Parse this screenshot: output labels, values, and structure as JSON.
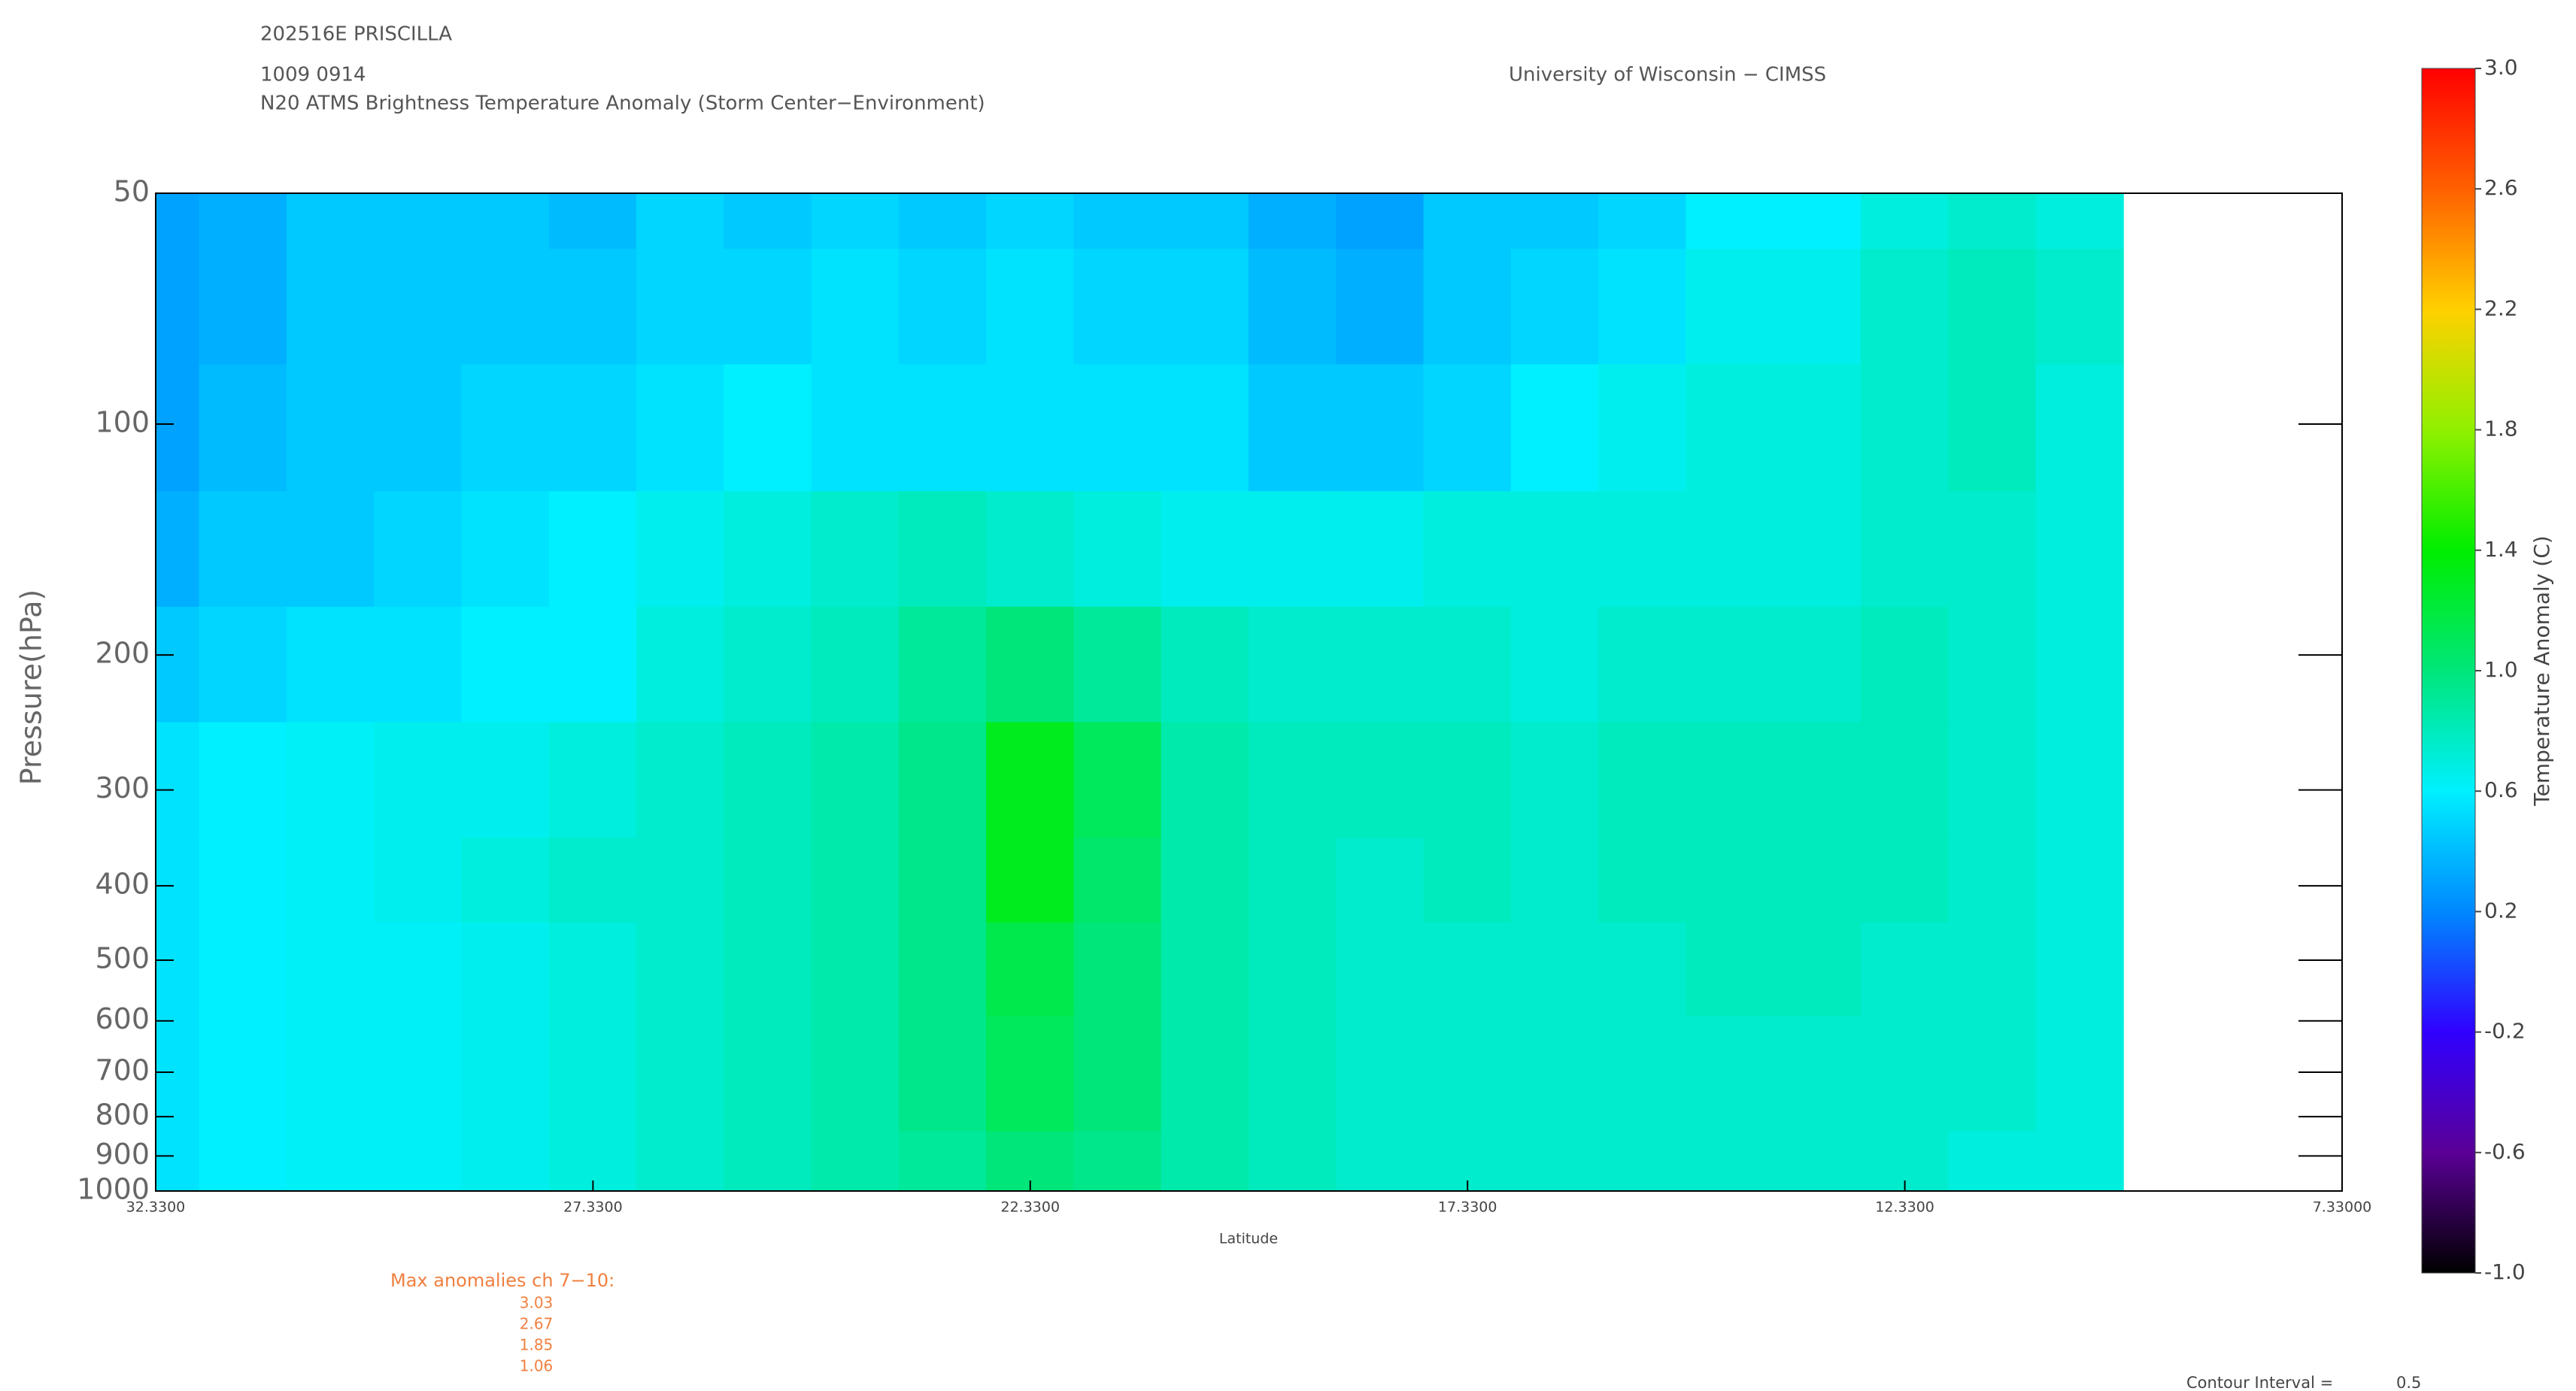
{
  "chart_data": {
    "type": "heatmap",
    "storm": "202516E PRISCILLA",
    "datetime": "1009 0914",
    "title": "N20 ATMS Brightness Temperature Anomaly (Storm Center−Environment)",
    "source": "University of Wisconsin − CIMSS",
    "ylabel": "Pressure(hPa)",
    "xlabel": "Latitude",
    "yscale": "log",
    "xlim": [
      32.33,
      7.33
    ],
    "xticks": [
      {
        "value": 32.33,
        "label": "32.3300"
      },
      {
        "value": 27.33,
        "label": "27.3300"
      },
      {
        "value": 22.33,
        "label": "22.3300"
      },
      {
        "value": 17.33,
        "label": "17.3300"
      },
      {
        "value": 12.33,
        "label": "12.3300"
      },
      {
        "value": 7.33,
        "label": "7.33000"
      }
    ],
    "ylim": [
      1000,
      50
    ],
    "yticks": [
      50,
      100,
      200,
      300,
      400,
      500,
      600,
      700,
      800,
      900,
      1000
    ],
    "x": [
      32.33,
      31.33,
      30.33,
      29.33,
      28.33,
      27.33,
      26.33,
      25.33,
      24.33,
      23.33,
      22.33,
      21.33,
      20.33,
      19.33,
      18.33,
      17.33,
      16.33,
      15.33,
      14.33,
      13.33,
      12.33,
      11.33,
      10.33
    ],
    "y": [
      50,
      70,
      100,
      150,
      200,
      300,
      400,
      500,
      700,
      1000
    ],
    "z": [
      [
        0.3,
        0.35,
        0.45,
        0.45,
        0.45,
        0.4,
        0.5,
        0.45,
        0.5,
        0.45,
        0.5,
        0.45,
        0.45,
        0.35,
        0.3,
        0.45,
        0.45,
        0.5,
        0.6,
        0.6,
        0.7,
        0.75,
        0.7
      ],
      [
        0.3,
        0.35,
        0.45,
        0.45,
        0.45,
        0.45,
        0.5,
        0.5,
        0.55,
        0.5,
        0.55,
        0.5,
        0.5,
        0.4,
        0.35,
        0.45,
        0.5,
        0.55,
        0.65,
        0.65,
        0.75,
        0.8,
        0.75
      ],
      [
        0.3,
        0.4,
        0.45,
        0.45,
        0.5,
        0.5,
        0.55,
        0.6,
        0.55,
        0.55,
        0.55,
        0.55,
        0.55,
        0.45,
        0.45,
        0.5,
        0.6,
        0.65,
        0.7,
        0.7,
        0.75,
        0.8,
        0.7
      ],
      [
        0.35,
        0.45,
        0.45,
        0.5,
        0.55,
        0.6,
        0.65,
        0.7,
        0.75,
        0.8,
        0.75,
        0.7,
        0.65,
        0.65,
        0.65,
        0.7,
        0.7,
        0.7,
        0.7,
        0.7,
        0.75,
        0.75,
        0.7
      ],
      [
        0.45,
        0.5,
        0.55,
        0.55,
        0.6,
        0.6,
        0.7,
        0.75,
        0.8,
        0.9,
        1.0,
        0.9,
        0.8,
        0.75,
        0.75,
        0.75,
        0.7,
        0.75,
        0.75,
        0.75,
        0.8,
        0.75,
        0.7
      ],
      [
        0.55,
        0.6,
        0.62,
        0.65,
        0.65,
        0.7,
        0.75,
        0.8,
        0.85,
        0.95,
        1.3,
        1.1,
        0.85,
        0.8,
        0.8,
        0.8,
        0.75,
        0.8,
        0.8,
        0.8,
        0.8,
        0.75,
        0.7
      ],
      [
        0.55,
        0.6,
        0.62,
        0.65,
        0.7,
        0.75,
        0.75,
        0.8,
        0.85,
        0.95,
        1.3,
        1.05,
        0.85,
        0.8,
        0.75,
        0.8,
        0.75,
        0.8,
        0.8,
        0.8,
        0.8,
        0.75,
        0.7
      ],
      [
        0.55,
        0.6,
        0.62,
        0.62,
        0.65,
        0.7,
        0.75,
        0.8,
        0.85,
        0.95,
        1.15,
        1.0,
        0.85,
        0.8,
        0.75,
        0.75,
        0.75,
        0.75,
        0.8,
        0.8,
        0.75,
        0.75,
        0.7
      ],
      [
        0.55,
        0.6,
        0.62,
        0.62,
        0.65,
        0.7,
        0.75,
        0.8,
        0.85,
        0.95,
        1.1,
        1.0,
        0.85,
        0.8,
        0.75,
        0.75,
        0.75,
        0.75,
        0.75,
        0.75,
        0.75,
        0.75,
        0.7
      ],
      [
        0.55,
        0.6,
        0.62,
        0.62,
        0.65,
        0.7,
        0.75,
        0.8,
        0.85,
        0.9,
        1.0,
        0.95,
        0.85,
        0.8,
        0.75,
        0.75,
        0.75,
        0.75,
        0.75,
        0.75,
        0.75,
        0.7,
        0.7
      ]
    ],
    "colorbar_label": "Temperature Anomaly (C)",
    "clim": [
      -1.0,
      3.0
    ],
    "cbticks": [
      {
        "value": -1.0,
        "label": "-1.0"
      },
      -0.6,
      -0.2,
      0.2,
      0.6,
      {
        "value": 1.0,
        "label": "1.0"
      },
      1.4,
      1.8,
      2.2,
      2.6,
      {
        "value": 3.0,
        "label": "3.0"
      }
    ],
    "colorscale": [
      "#000000",
      "#5a0096",
      "#3000ff",
      "#0088ff",
      "#00f0ff",
      "#00e67a",
      "#00ee00",
      "#90f000",
      "#ffd000",
      "#ff6000",
      "#ff0000"
    ],
    "max_anomalies_label": "Max anomalies ch 7−10:",
    "max_anomalies": [
      3.03,
      2.67,
      1.85,
      1.06
    ],
    "contour_interval_label": "Contour Interval =",
    "contour_interval": 0.5
  }
}
